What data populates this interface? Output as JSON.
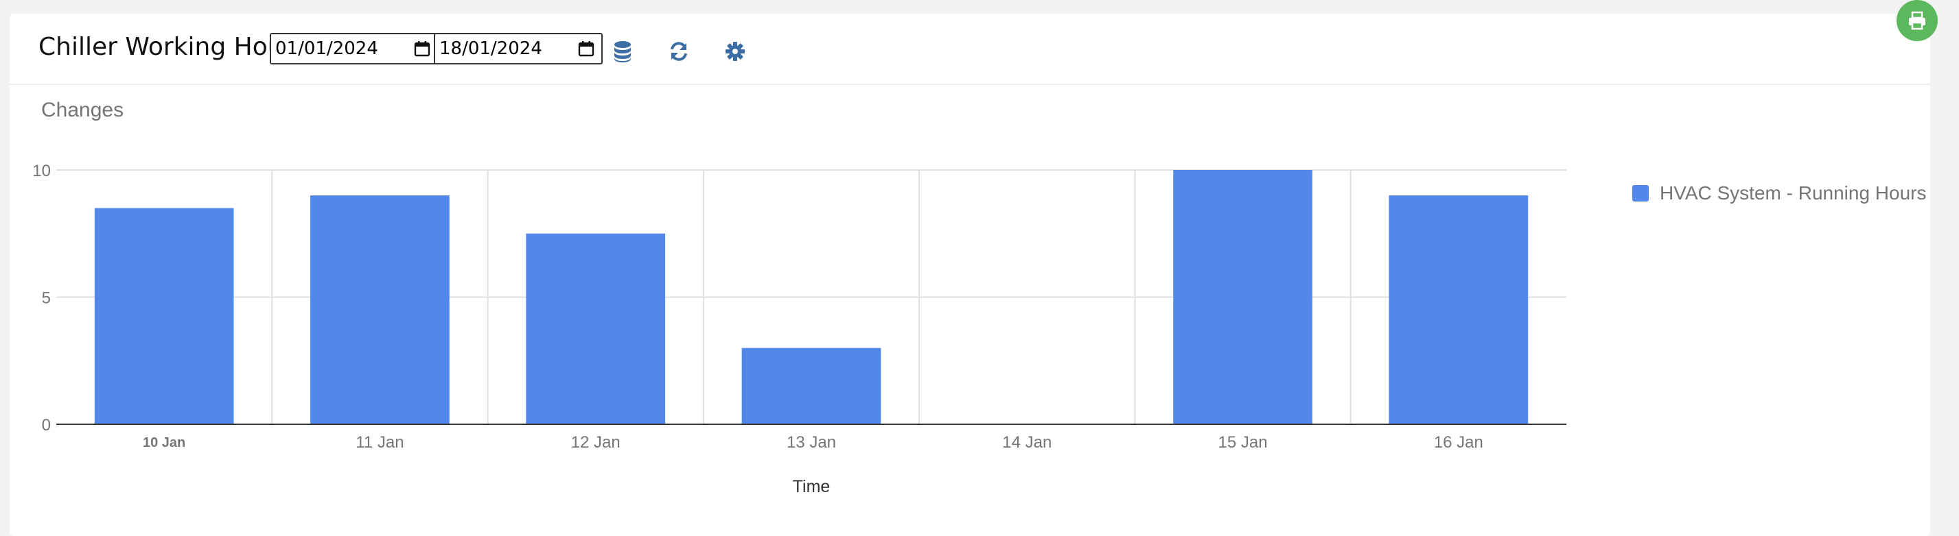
{
  "toolbar": {
    "title": "Chiller Working Hours",
    "date_from": "01/01/2024",
    "date_to": "18/01/2024"
  },
  "icons": {
    "calendar": "calendar-icon",
    "database": "database-icon",
    "refresh": "refresh-icon",
    "settings": "gear-icon",
    "print": "print-icon"
  },
  "colors": {
    "bar": "#5188ea",
    "print_button": "#5cb85c",
    "toolbar_icon": "#3a6ea5"
  },
  "chart_data": {
    "type": "bar",
    "title": "Changes",
    "xlabel": "Time",
    "ylabel": "",
    "categories": [
      "10 Jan",
      "11 Jan",
      "12 Jan",
      "13 Jan",
      "14 Jan",
      "15 Jan",
      "16 Jan"
    ],
    "series": [
      {
        "name": "HVAC System - Running Hours",
        "values": [
          8.5,
          9,
          7.5,
          3,
          0,
          10,
          9
        ]
      }
    ],
    "ylim": [
      0,
      10
    ],
    "yticks": [
      0,
      5,
      10
    ],
    "grid": true,
    "legend": "right"
  }
}
